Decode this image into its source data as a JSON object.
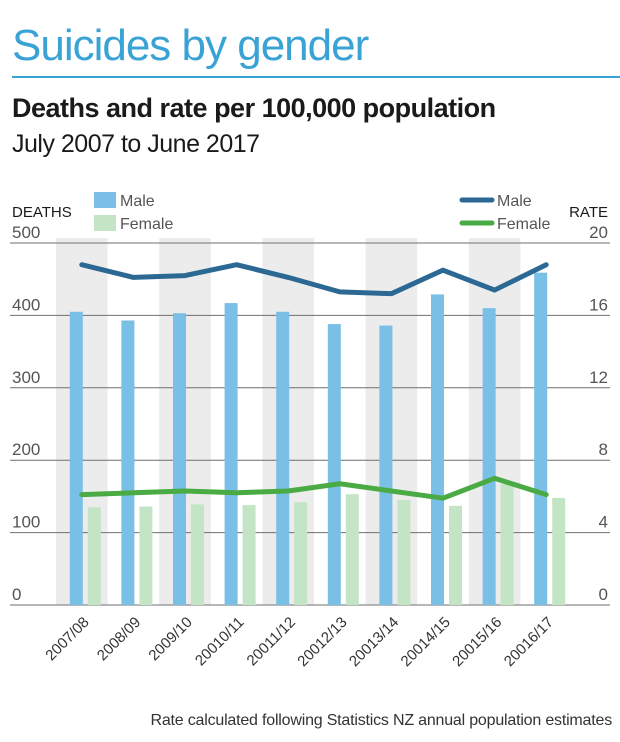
{
  "header": {
    "title": "Suicides by gender",
    "subtitle": "Deaths and rate per 100,000 population",
    "period": "July 2007 to June 2017"
  },
  "footnote": "Rate calculated following Statistics NZ annual population estimates",
  "colors": {
    "accent": "#3aa3d6",
    "male_bar": "#79bfe6",
    "female_bar": "#c4e5c5",
    "male_line": "#2b6994",
    "female_line": "#4aaa44",
    "band": "#ececec",
    "grid": "#6f6f6f"
  },
  "chart_data": {
    "type": "bar",
    "categories": [
      "2007/08",
      "2008/09",
      "2009/10",
      "20010/11",
      "20011/12",
      "20012/13",
      "20013/14",
      "20014/15",
      "20015/16",
      "20016/17"
    ],
    "y_left": {
      "label": "DEATHS",
      "ticks": [
        "0",
        "100",
        "200",
        "300",
        "400",
        "500"
      ],
      "lim": [
        0,
        500
      ]
    },
    "y_right": {
      "label": "RATE",
      "ticks": [
        "0",
        "4",
        "8",
        "12",
        "16",
        "20"
      ],
      "lim": [
        0,
        20
      ]
    },
    "bar_legend": [
      "Male",
      "Female"
    ],
    "line_legend": [
      "Male",
      "Female"
    ],
    "series": [
      {
        "name": "Male",
        "type": "bar",
        "axis": "left",
        "values": [
          405,
          393,
          403,
          417,
          405,
          388,
          386,
          429,
          410,
          459
        ]
      },
      {
        "name": "Female",
        "type": "bar",
        "axis": "left",
        "values": [
          135,
          136,
          139,
          138,
          142,
          153,
          145,
          137,
          167,
          148
        ]
      },
      {
        "name": "Male",
        "type": "line",
        "axis": "right",
        "values": [
          18.8,
          18.1,
          18.2,
          18.8,
          18.1,
          17.3,
          17.2,
          18.5,
          17.4,
          18.8
        ]
      },
      {
        "name": "Female",
        "type": "line",
        "axis": "right",
        "values": [
          6.1,
          6.2,
          6.3,
          6.2,
          6.3,
          6.7,
          6.3,
          5.9,
          7.0,
          6.1
        ]
      }
    ],
    "grid": true,
    "legend_position": "top"
  }
}
